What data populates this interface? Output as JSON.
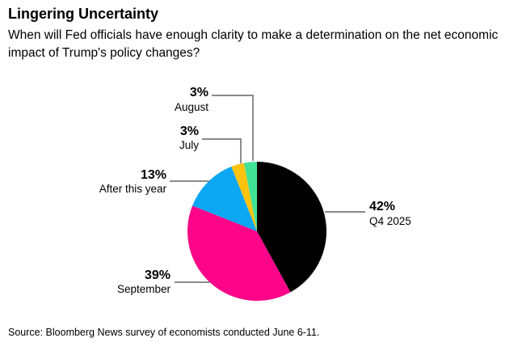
{
  "header": {
    "title": "Lingering Uncertainty",
    "subtitle": "When will Fed officials have enough clarity to make a determination on the net economic impact of Trump's policy changes?"
  },
  "chart_data": {
    "type": "pie",
    "title": "Lingering Uncertainty",
    "question": "When will Fed officials have enough clarity to make a determination on the net economic impact of Trump's policy changes?",
    "unit": "percent",
    "start_angle_deg": 0,
    "direction": "clockwise",
    "legend": "none",
    "leader_line_color": "#7a7a7a",
    "slices": [
      {
        "label": "Q4 2025",
        "value": 42,
        "pct_label": "42%",
        "color": "#000000"
      },
      {
        "label": "September",
        "value": 39,
        "pct_label": "39%",
        "color": "#fc0589"
      },
      {
        "label": "After this year",
        "value": 13,
        "pct_label": "13%",
        "color": "#0ba7f2"
      },
      {
        "label": "July",
        "value": 3,
        "pct_label": "3%",
        "color": "#ffc20e"
      },
      {
        "label": "August",
        "value": 3,
        "pct_label": "3%",
        "color": "#42e295"
      }
    ]
  },
  "source": {
    "text": "Source: Bloomberg News survey of economists conducted June 6-11."
  }
}
